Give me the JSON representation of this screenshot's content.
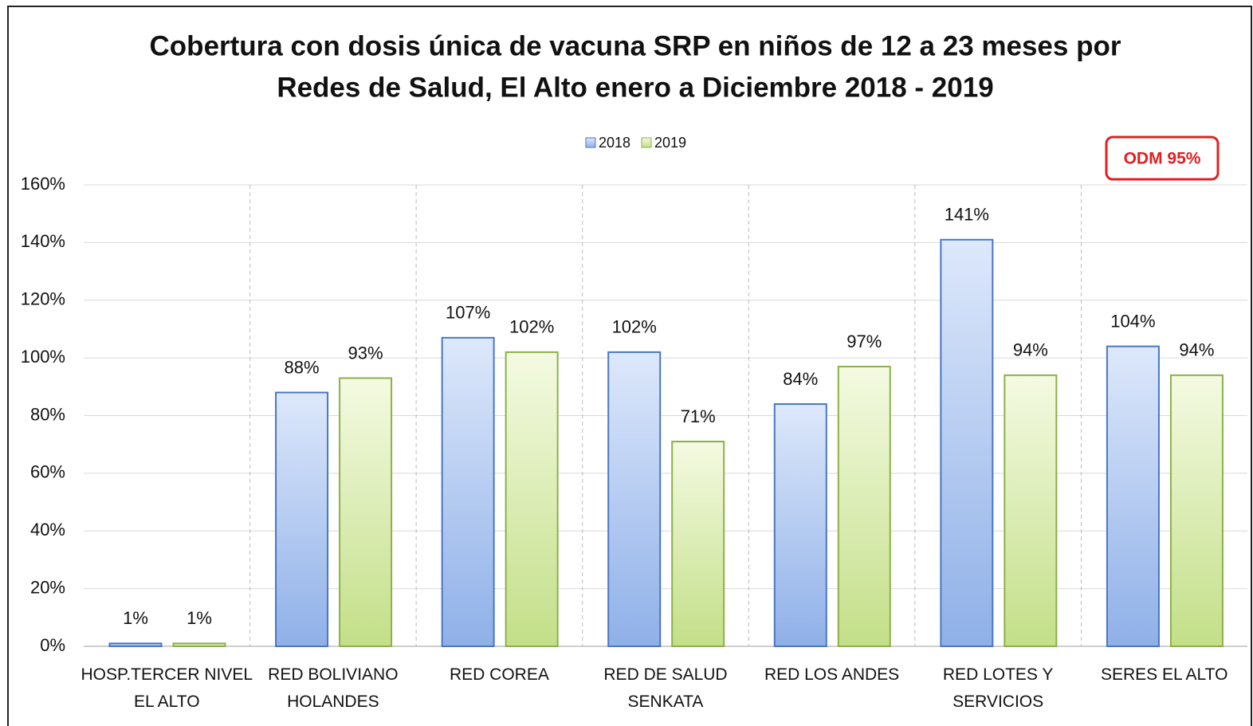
{
  "chart_data": {
    "type": "bar",
    "title": [
      "Cobertura con dosis única de vacuna SRP en niños de 12 a 23 meses por",
      "Redes de Salud, El Alto enero a Diciembre  2018 - 2019"
    ],
    "categories": [
      "HOSP.TERCER NIVEL\nEL ALTO",
      "RED BOLIVIANO\nHOLANDES",
      "RED COREA",
      "RED DE SALUD\nSENKATA",
      "RED LOS ANDES",
      "RED LOTES Y\nSERVICIOS",
      "SERES EL ALTO"
    ],
    "series": [
      {
        "name": "2018",
        "color": "#4a76c2",
        "values": [
          1,
          88,
          107,
          102,
          84,
          141,
          104
        ],
        "value_labels": [
          "1%",
          "88%",
          "107%",
          "102%",
          "84%",
          "141%",
          "104%"
        ]
      },
      {
        "name": "2019",
        "color": "#8db04a",
        "values": [
          1,
          93,
          102,
          71,
          97,
          94,
          94
        ],
        "value_labels": [
          "1%",
          "93%",
          "102%",
          "71%",
          "97%",
          "94%",
          "94%"
        ]
      }
    ],
    "ylim": [
      0,
      160
    ],
    "yticks": [
      {
        "value": 0,
        "label": "0%"
      },
      {
        "value": 20,
        "label": "20%"
      },
      {
        "value": 40,
        "label": "40%"
      },
      {
        "value": 60,
        "label": "60%"
      },
      {
        "value": 80,
        "label": "80%"
      },
      {
        "value": 100,
        "label": "100%"
      },
      {
        "value": 120,
        "label": "120%"
      },
      {
        "value": 140,
        "label": "140%"
      },
      {
        "value": 160,
        "label": "160%"
      }
    ],
    "grid": true,
    "legend": "top",
    "annotation": "ODM 95%"
  }
}
